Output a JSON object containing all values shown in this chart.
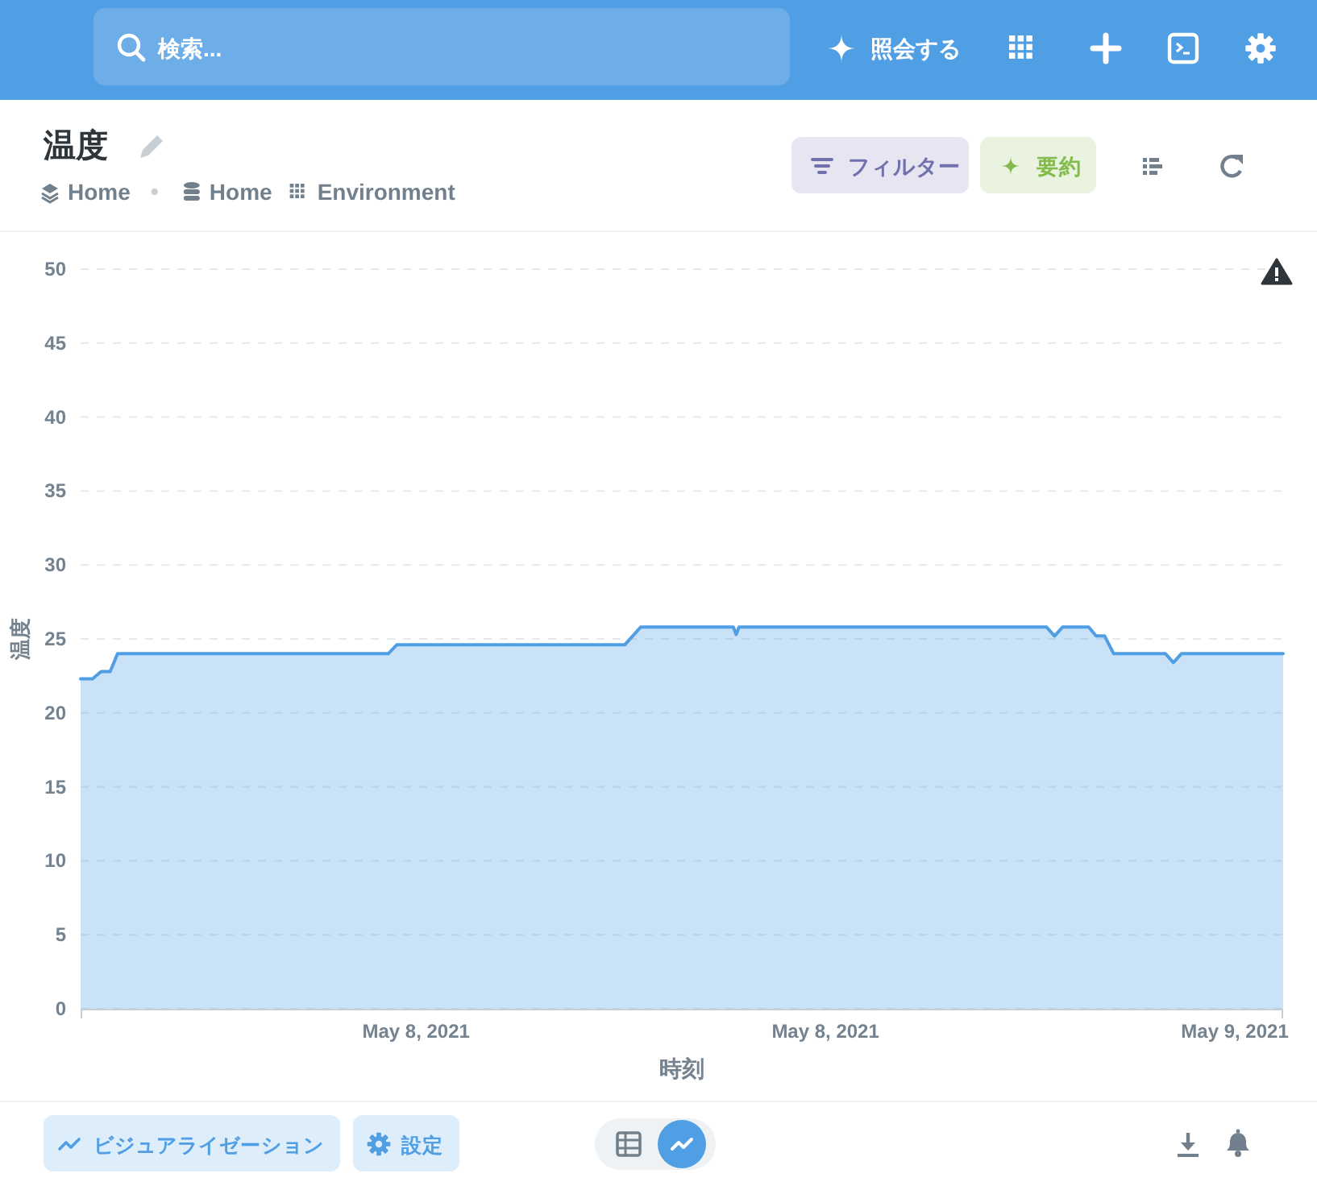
{
  "chart_data": {
    "type": "area",
    "title": "温度",
    "xlabel": "時刻",
    "ylabel": "温度",
    "annotations": [
      "検索...",
      "照会する",
      "Home",
      "Home",
      "Environment",
      "フィルター",
      "要約",
      "ビジュアライゼーション",
      "設定"
    ],
    "x": [
      "2021-05-07T14:10",
      "2021-05-07T14:31",
      "2021-05-07T14:46",
      "2021-05-07T15:02",
      "2021-05-07T15:15",
      "2021-05-07T23:11",
      "2021-05-07T23:26",
      "2021-05-08T06:07",
      "2021-05-08T06:35",
      "2021-05-08T09:18",
      "2021-05-08T09:23",
      "2021-05-08T09:28",
      "2021-05-08T18:29",
      "2021-05-08T18:43",
      "2021-05-08T18:57",
      "2021-05-08T19:43",
      "2021-05-08T19:56",
      "2021-05-08T20:11",
      "2021-05-08T20:27",
      "2021-05-08T21:58",
      "2021-05-08T22:12",
      "2021-05-08T22:26",
      "2021-05-09T01:25"
    ],
    "values": [
      22.3,
      22.3,
      22.8,
      22.8,
      24.0,
      24.0,
      24.6,
      24.6,
      25.8,
      25.8,
      25.3,
      25.8,
      25.8,
      25.2,
      25.8,
      25.8,
      25.2,
      25.2,
      24.0,
      24.0,
      23.4,
      24.0,
      24.0
    ],
    "color": "#509ee3",
    "xlim": [
      "2021-05-07T14:10",
      "2021-05-09T01:25"
    ],
    "xticks": [
      {
        "value": "2021-05-08T00:00",
        "label": "May 8, 2021"
      },
      {
        "value": "2021-05-08T12:00",
        "label": "May 8, 2021"
      },
      {
        "value": "2021-05-09T00:00",
        "label": "May 9, 2021"
      }
    ],
    "ylim": [
      0,
      50
    ],
    "yticks": [
      0,
      5,
      10,
      15,
      20,
      25,
      30,
      35,
      40,
      45,
      50
    ],
    "grid": "y"
  }
}
